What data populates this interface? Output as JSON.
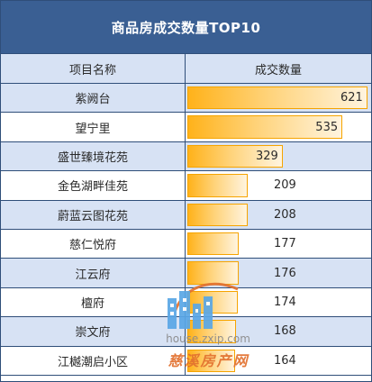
{
  "title": "商品房成交数量TOP10",
  "table": {
    "header": {
      "name": "项目名称",
      "value": "成交数量"
    }
  },
  "chart_data": {
    "type": "bar",
    "title": "商品房成交数量TOP10",
    "categories": [
      "紫阙台",
      "望宁里",
      "盛世臻境花苑",
      "金色湖畔佳苑",
      "蔚蓝云图花苑",
      "慈仁悦府",
      "江云府",
      "檀府",
      "崇文府",
      "江樾潮启小区"
    ],
    "values": [
      621,
      535,
      329,
      209,
      208,
      177,
      176,
      174,
      168,
      164
    ],
    "xlabel": "项目名称",
    "ylabel": "成交数量",
    "ylim": [
      0,
      621
    ],
    "colors": {
      "bar_fill_start": "#ffb21a",
      "bar_fill_end": "#fff4df",
      "bar_border": "#f6a400",
      "header_bg": "#3a5f93",
      "alt_row_bg": "#d7e2f4",
      "grid": "#2f4e79"
    }
  },
  "watermark": {
    "url": "house.zxip.com",
    "brand": "慈溪房产网",
    "icon": "building-icon"
  }
}
